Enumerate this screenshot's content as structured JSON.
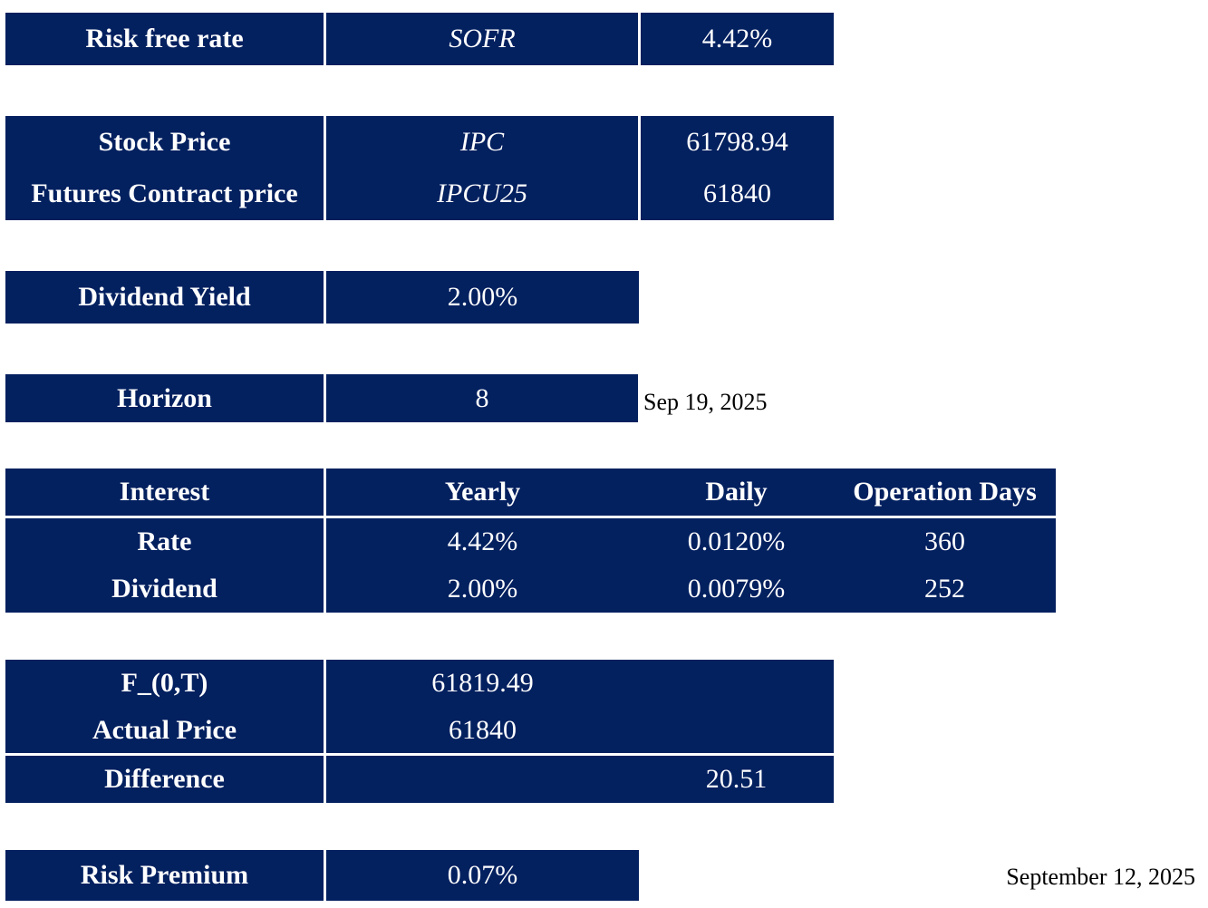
{
  "risk_free": {
    "label": "Risk free rate",
    "ticker": "SOFR",
    "value": "4.42%"
  },
  "prices": {
    "stock_label": "Stock Price",
    "stock_ticker": "IPC",
    "stock_value": "61798.94",
    "futures_label": "Futures Contract price",
    "futures_ticker": "IPCU25",
    "futures_value": "61840"
  },
  "dividend_yield": {
    "label": "Dividend Yield",
    "value": "2.00%"
  },
  "horizon": {
    "label": "Horizon",
    "value": "8",
    "date": "Sep 19, 2025"
  },
  "interest_table": {
    "headers": [
      "Interest",
      "Yearly",
      "Daily",
      "Operation Days"
    ],
    "rows": [
      [
        "Rate",
        "4.42%",
        "0.0120%",
        "360"
      ],
      [
        "Dividend",
        "2.00%",
        "0.0079%",
        "252"
      ]
    ]
  },
  "forward": {
    "f_label": "F_(0,T)",
    "f_value": "61819.49",
    "actual_label": "Actual Price",
    "actual_value": "61840",
    "diff_label": "Difference",
    "diff_value": "20.51"
  },
  "risk_premium": {
    "label": "Risk Premium",
    "value": "0.07%"
  },
  "report_date": "September 12, 2025",
  "colors": {
    "cell_background": "#03205f",
    "cell_text": "#ffffff",
    "page_background": "#ffffff"
  }
}
